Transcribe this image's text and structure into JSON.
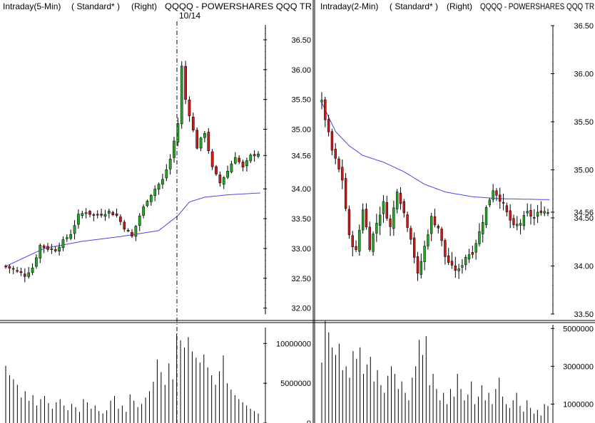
{
  "colors": {
    "background": "#ffffff",
    "up_candle": "#22a822",
    "down_candle": "#d01818",
    "moving_average": "#4848e0",
    "volume_bar": "#000000",
    "divider": "#000000"
  },
  "chart_data": [
    {
      "type": "candlestick",
      "header": {
        "interval": "Intraday(5-Min)",
        "style": "( Standard* )",
        "axis_side": "(Right)",
        "symbol": "QQQQ - POWERSHARES QQQ TR"
      },
      "date_marker": "10/14",
      "price_axis": {
        "ylim": [
          31.9,
          36.75
        ],
        "ticks": [
          "36.50",
          "36.00",
          "35.50",
          "35.00",
          "34.56",
          "34.00",
          "33.50",
          "33.00",
          "32.50",
          "32.00"
        ]
      },
      "last_price": "34.56",
      "close_path": [
        [
          0,
          32.7
        ],
        [
          3,
          32.62
        ],
        [
          5,
          32.55
        ],
        [
          7,
          32.68
        ],
        [
          9,
          33.05
        ],
        [
          11,
          33.0
        ],
        [
          13,
          32.98
        ],
        [
          15,
          33.12
        ],
        [
          17,
          33.25
        ],
        [
          19,
          33.55
        ],
        [
          21,
          33.62
        ],
        [
          23,
          33.55
        ],
        [
          25,
          33.58
        ],
        [
          27,
          33.62
        ],
        [
          29,
          33.55
        ],
        [
          31,
          33.35
        ],
        [
          33,
          33.2
        ],
        [
          35,
          33.55
        ],
        [
          37,
          33.82
        ],
        [
          39,
          34.0
        ],
        [
          41,
          34.15
        ],
        [
          43,
          34.5
        ],
        [
          45,
          35.1
        ],
        [
          46,
          36.05
        ],
        [
          47,
          35.5
        ],
        [
          48,
          35.25
        ],
        [
          50,
          34.7
        ],
        [
          52,
          34.95
        ],
        [
          54,
          34.35
        ],
        [
          56,
          34.1
        ],
        [
          58,
          34.3
        ],
        [
          60,
          34.55
        ],
        [
          62,
          34.35
        ],
        [
          64,
          34.55
        ],
        [
          66,
          34.6
        ]
      ],
      "moving_average": [
        [
          0,
          32.7
        ],
        [
          10,
          33.0
        ],
        [
          20,
          33.12
        ],
        [
          30,
          33.2
        ],
        [
          40,
          33.3
        ],
        [
          45,
          33.55
        ],
        [
          48,
          33.78
        ],
        [
          52,
          33.86
        ],
        [
          58,
          33.9
        ],
        [
          66,
          33.93
        ]
      ],
      "volume_axis": {
        "ylim": [
          0,
          12000000
        ],
        "ticks": [
          "10000000",
          "5000000",
          "0"
        ]
      },
      "volume": [
        7.2,
        6.0,
        5.5,
        4.8,
        3.2,
        4.0,
        2.8,
        3.5,
        2.2,
        3.0,
        3.4,
        2.5,
        1.8,
        2.6,
        3.0,
        2.2,
        1.6,
        2.4,
        2.0,
        1.4,
        3.0,
        2.6,
        1.8,
        2.2,
        1.5,
        1.2,
        1.6,
        2.8,
        3.4,
        1.8,
        2.2,
        1.4,
        3.6,
        2.8,
        2.0,
        2.4,
        3.2,
        4.0,
        5.2,
        8.0,
        6.4,
        4.8,
        7.5,
        5.5,
        11.2,
        10.4,
        9.5,
        10.8,
        9.0,
        8.2,
        7.6,
        8.6,
        7.0,
        6.0,
        4.8,
        6.5,
        8.5,
        5.0,
        4.2,
        3.5,
        3.0,
        2.6,
        2.2,
        1.8,
        1.5,
        1.2
      ]
    },
    {
      "type": "candlestick",
      "header": {
        "interval": "Intraday(2-Min)",
        "style": "( Standard* )",
        "axis_side": "(Right)",
        "symbol": "QQQQ - POWERSHARES QQQ TR"
      },
      "price_axis": {
        "ylim": [
          33.5,
          36.5
        ],
        "ticks": [
          "36.50",
          "36.00",
          "35.50",
          "35.00",
          "34.56",
          "34.50",
          "34.00",
          "33.50"
        ]
      },
      "last_price": "34.56",
      "close_path": [
        [
          0,
          35.7
        ],
        [
          3,
          35.2
        ],
        [
          6,
          34.9
        ],
        [
          8,
          34.3
        ],
        [
          10,
          34.15
        ],
        [
          12,
          34.6
        ],
        [
          14,
          34.2
        ],
        [
          16,
          34.45
        ],
        [
          18,
          34.65
        ],
        [
          20,
          34.4
        ],
        [
          22,
          34.8
        ],
        [
          24,
          34.55
        ],
        [
          26,
          34.3
        ],
        [
          28,
          33.9
        ],
        [
          30,
          34.2
        ],
        [
          32,
          34.5
        ],
        [
          34,
          34.4
        ],
        [
          36,
          34.1
        ],
        [
          38,
          33.98
        ],
        [
          40,
          33.95
        ],
        [
          42,
          34.1
        ],
        [
          44,
          34.15
        ],
        [
          46,
          34.35
        ],
        [
          48,
          34.6
        ],
        [
          50,
          34.8
        ],
        [
          52,
          34.7
        ],
        [
          54,
          34.55
        ],
        [
          56,
          34.4
        ],
        [
          58,
          34.45
        ],
        [
          60,
          34.55
        ],
        [
          62,
          34.5
        ],
        [
          64,
          34.58
        ],
        [
          66,
          34.56
        ]
      ],
      "moving_average": [
        [
          0,
          35.7
        ],
        [
          4,
          35.4
        ],
        [
          8,
          35.25
        ],
        [
          12,
          35.15
        ],
        [
          18,
          35.08
        ],
        [
          24,
          34.98
        ],
        [
          30,
          34.85
        ],
        [
          36,
          34.77
        ],
        [
          44,
          34.72
        ],
        [
          52,
          34.7
        ],
        [
          66,
          34.69
        ]
      ],
      "volume_axis": {
        "ylim": [
          0,
          5200000
        ],
        "ticks": [
          "5000000",
          "3000000",
          "1000000"
        ]
      },
      "volume": [
        3.2,
        5.4,
        4.8,
        4.0,
        3.6,
        4.2,
        2.8,
        3.0,
        2.4,
        3.8,
        3.4,
        4.0,
        2.6,
        3.1,
        3.5,
        2.2,
        2.8,
        2.0,
        1.6,
        2.5,
        3.0,
        2.6,
        1.8,
        2.2,
        1.6,
        1.2,
        2.4,
        3.0,
        4.4,
        3.6,
        4.6,
        2.0,
        2.6,
        1.8,
        1.2,
        1.6,
        1.0,
        1.8,
        1.4,
        2.6,
        1.8,
        1.2,
        1.5,
        2.2,
        1.0,
        1.4,
        2.0,
        1.2,
        1.6,
        1.0,
        1.8,
        2.4,
        1.4,
        1.0,
        0.8,
        1.2,
        1.6,
        0.9,
        0.6,
        1.2,
        0.8,
        0.5,
        0.7,
        0.4,
        1.0,
        0.9
      ]
    }
  ]
}
